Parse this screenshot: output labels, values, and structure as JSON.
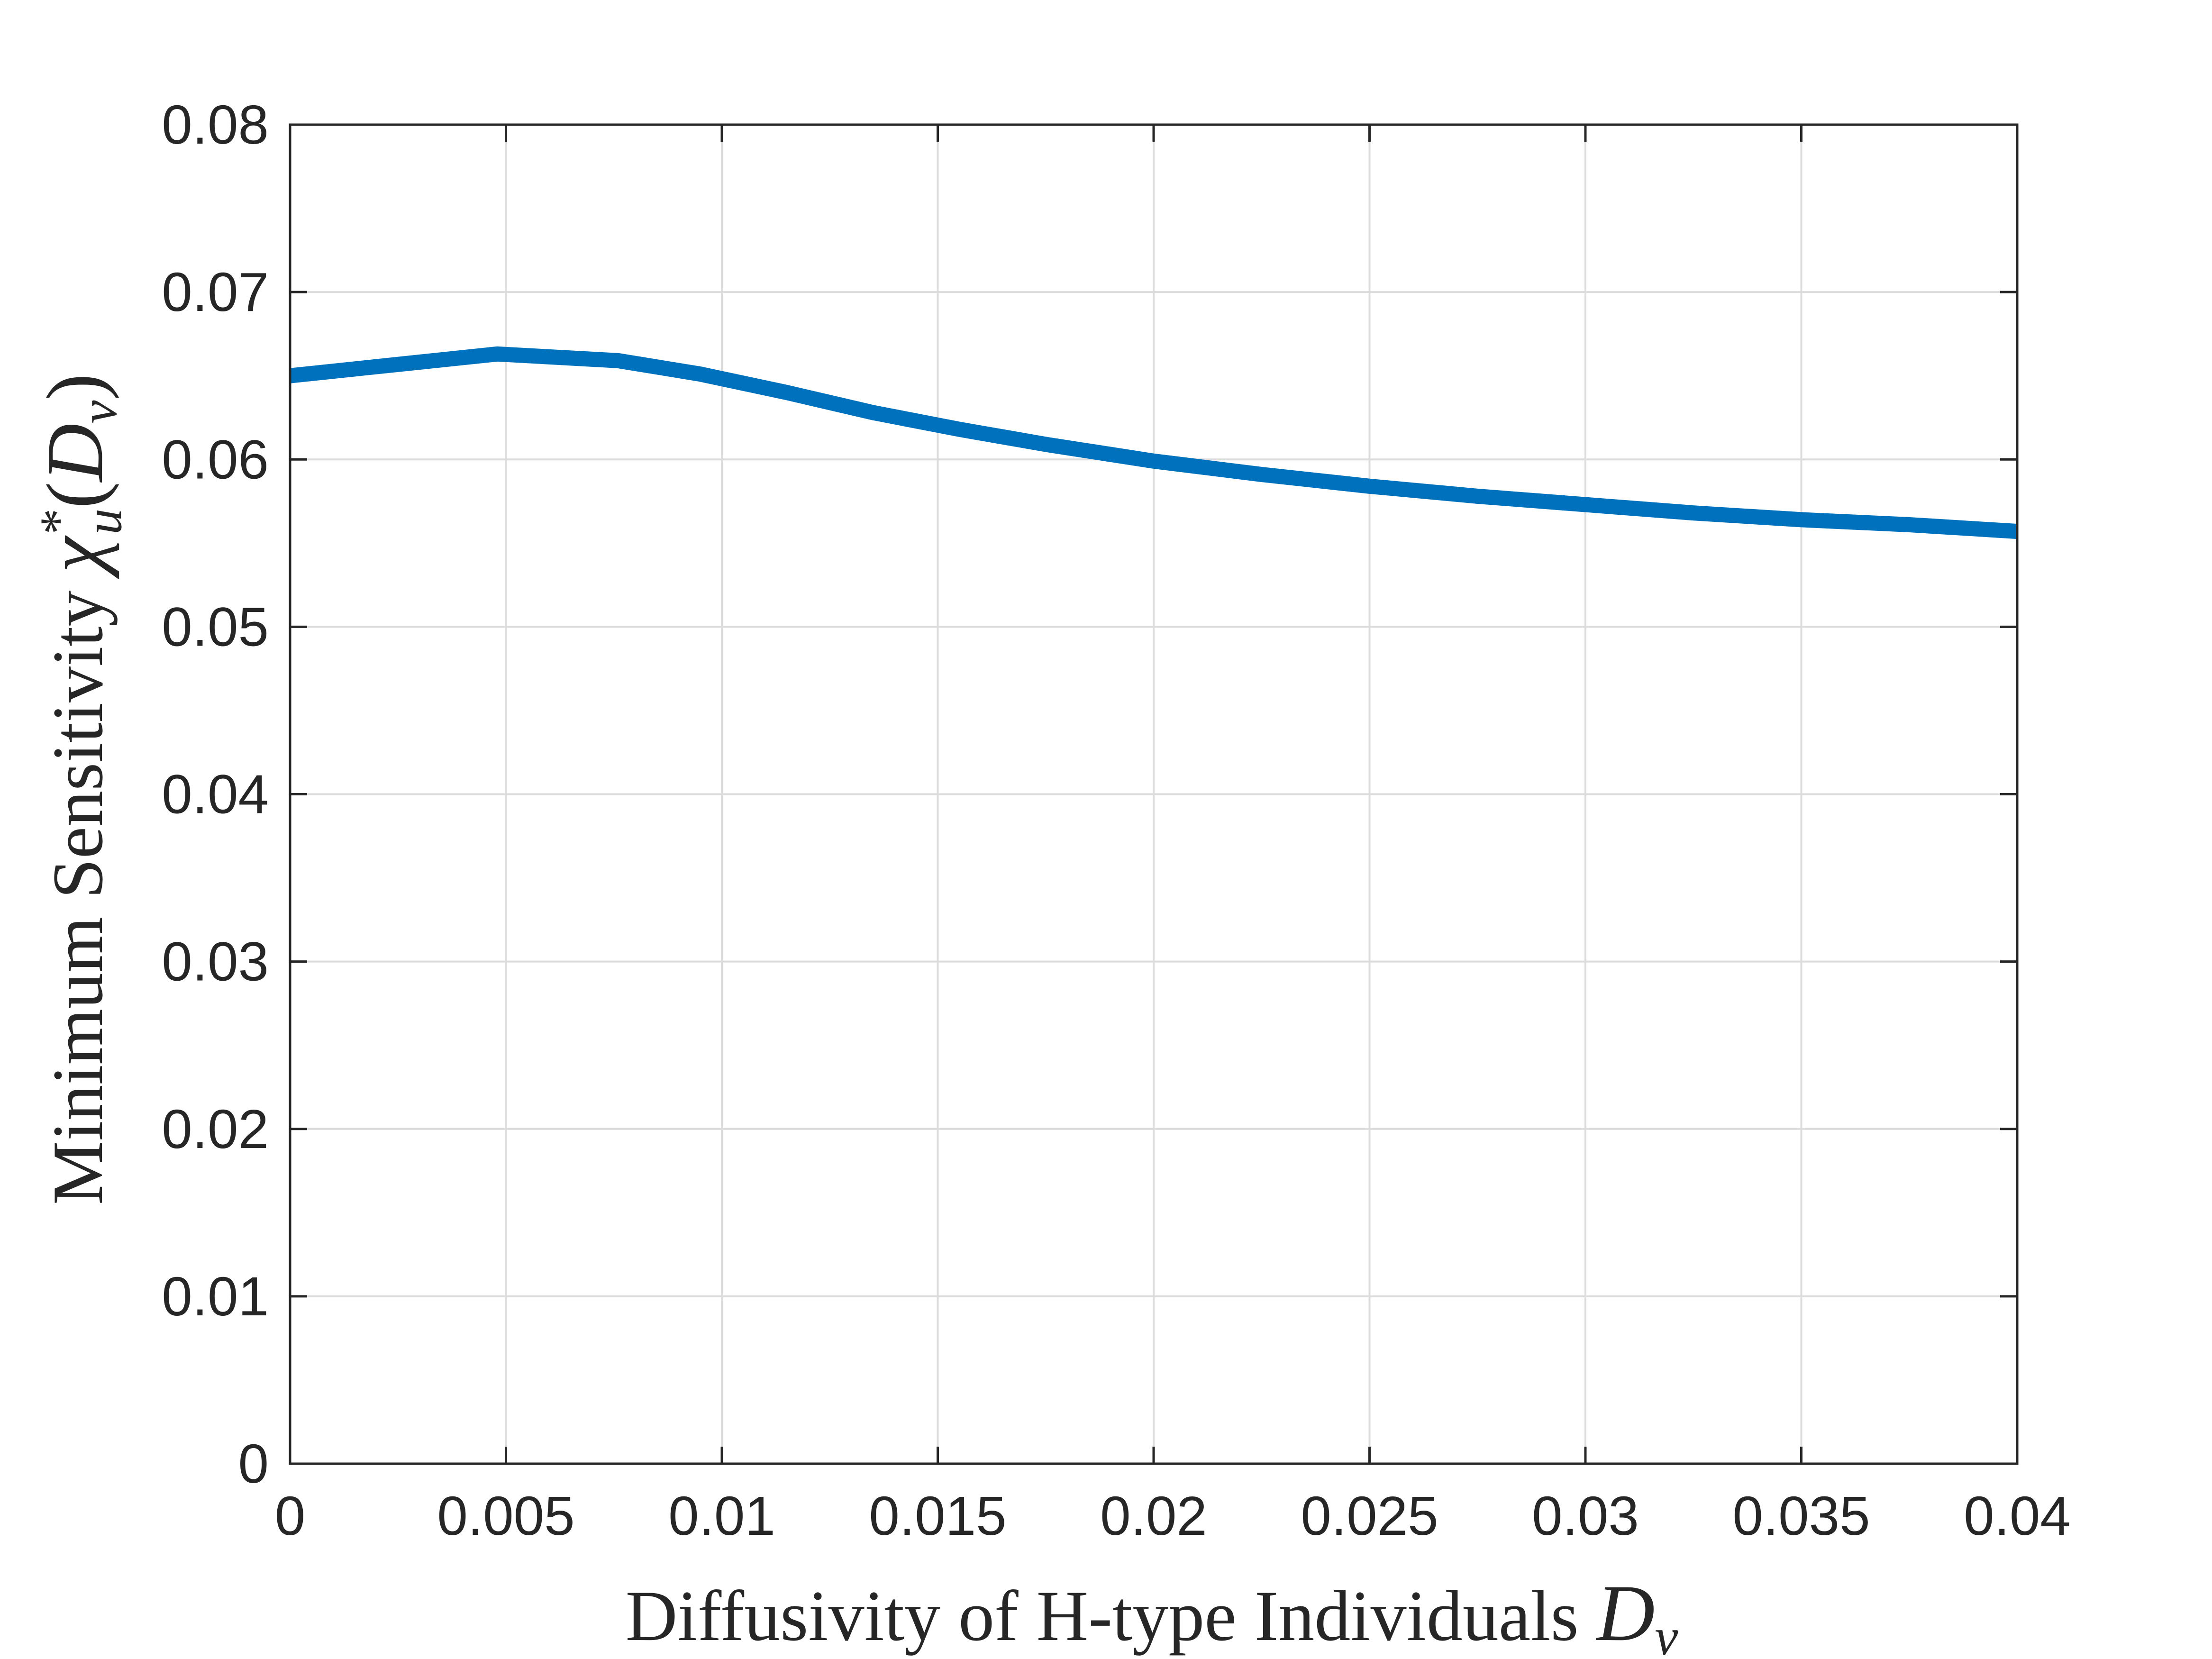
{
  "chart_data": {
    "type": "line",
    "title": "",
    "xlabel_text": "Diffusivity of H-type Individuals ",
    "xlabel_math": "D",
    "xlabel_math_sub": "v",
    "ylabel_text": "Minimum Sensitivity ",
    "ylabel_math": "χ",
    "ylabel_math_sup": "*",
    "ylabel_math_sub": "u",
    "ylabel_arg_open": "(",
    "ylabel_arg": "D",
    "ylabel_arg_sub": "v",
    "ylabel_arg_close": ")",
    "xlim": [
      0,
      0.04
    ],
    "ylim": [
      0,
      0.08
    ],
    "x_ticks": [
      0,
      0.005,
      0.01,
      0.015,
      0.02,
      0.025,
      0.03,
      0.035,
      0.04
    ],
    "x_tick_labels": [
      "0",
      "0.005",
      "0.01",
      "0.015",
      "0.02",
      "0.025",
      "0.03",
      "0.035",
      "0.04"
    ],
    "y_ticks": [
      0,
      0.01,
      0.02,
      0.03,
      0.04,
      0.05,
      0.06,
      0.07,
      0.08
    ],
    "y_tick_labels": [
      "0",
      "0.01",
      "0.02",
      "0.03",
      "0.04",
      "0.05",
      "0.06",
      "0.07",
      "0.08"
    ],
    "grid": true,
    "series": [
      {
        "color": "#0072bd",
        "x": [
          0,
          0.0048,
          0.0076,
          0.0095,
          0.0115,
          0.0135,
          0.0155,
          0.0175,
          0.02,
          0.0225,
          0.025,
          0.0275,
          0.03,
          0.0325,
          0.035,
          0.0375,
          0.04
        ],
        "y": [
          0.065,
          0.0663,
          0.0659,
          0.0651,
          0.064,
          0.0628,
          0.0618,
          0.0609,
          0.0599,
          0.0591,
          0.0584,
          0.0578,
          0.0573,
          0.0568,
          0.0564,
          0.0561,
          0.0557
        ]
      }
    ]
  }
}
